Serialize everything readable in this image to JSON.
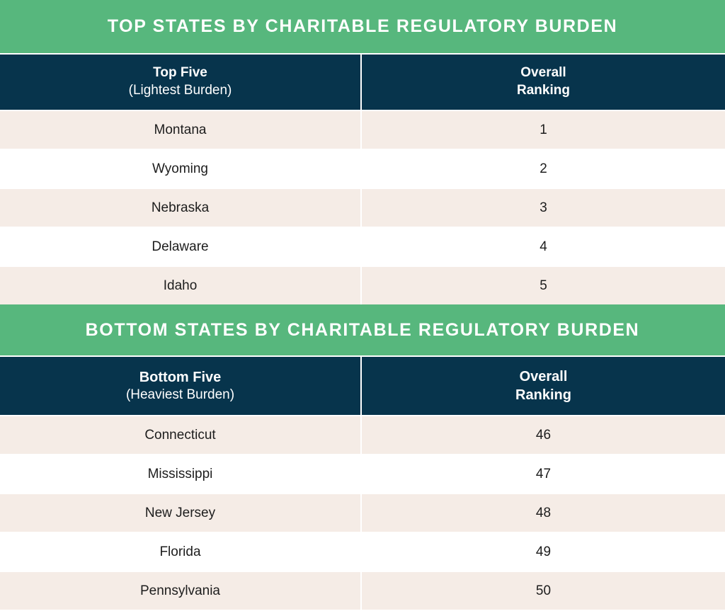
{
  "top": {
    "banner": "TOP STATES BY CHARITABLE REGULATORY BURDEN",
    "header": {
      "col1_title": "Top Five",
      "col1_sub": "(Lightest Burden)",
      "col2_line1": "Overall",
      "col2_line2": "Ranking"
    },
    "rows": [
      {
        "state": "Montana",
        "rank": "1"
      },
      {
        "state": "Wyoming",
        "rank": "2"
      },
      {
        "state": "Nebraska",
        "rank": "3"
      },
      {
        "state": "Delaware",
        "rank": "4"
      },
      {
        "state": "Idaho",
        "rank": "5"
      }
    ]
  },
  "bottom": {
    "banner": "BOTTOM STATES BY CHARITABLE REGULATORY BURDEN",
    "header": {
      "col1_title": "Bottom Five",
      "col1_sub": "(Heaviest Burden)",
      "col2_line1": "Overall",
      "col2_line2": "Ranking"
    },
    "rows": [
      {
        "state": "Connecticut",
        "rank": "46"
      },
      {
        "state": "Mississippi",
        "rank": "47"
      },
      {
        "state": "New Jersey",
        "rank": "48"
      },
      {
        "state": "Florida",
        "rank": "49"
      },
      {
        "state": "Pennsylvania",
        "rank": "50"
      }
    ]
  },
  "colors": {
    "banner_green": "#57b77d",
    "header_navy": "#07344c",
    "row_shade": "#f5ece6"
  }
}
